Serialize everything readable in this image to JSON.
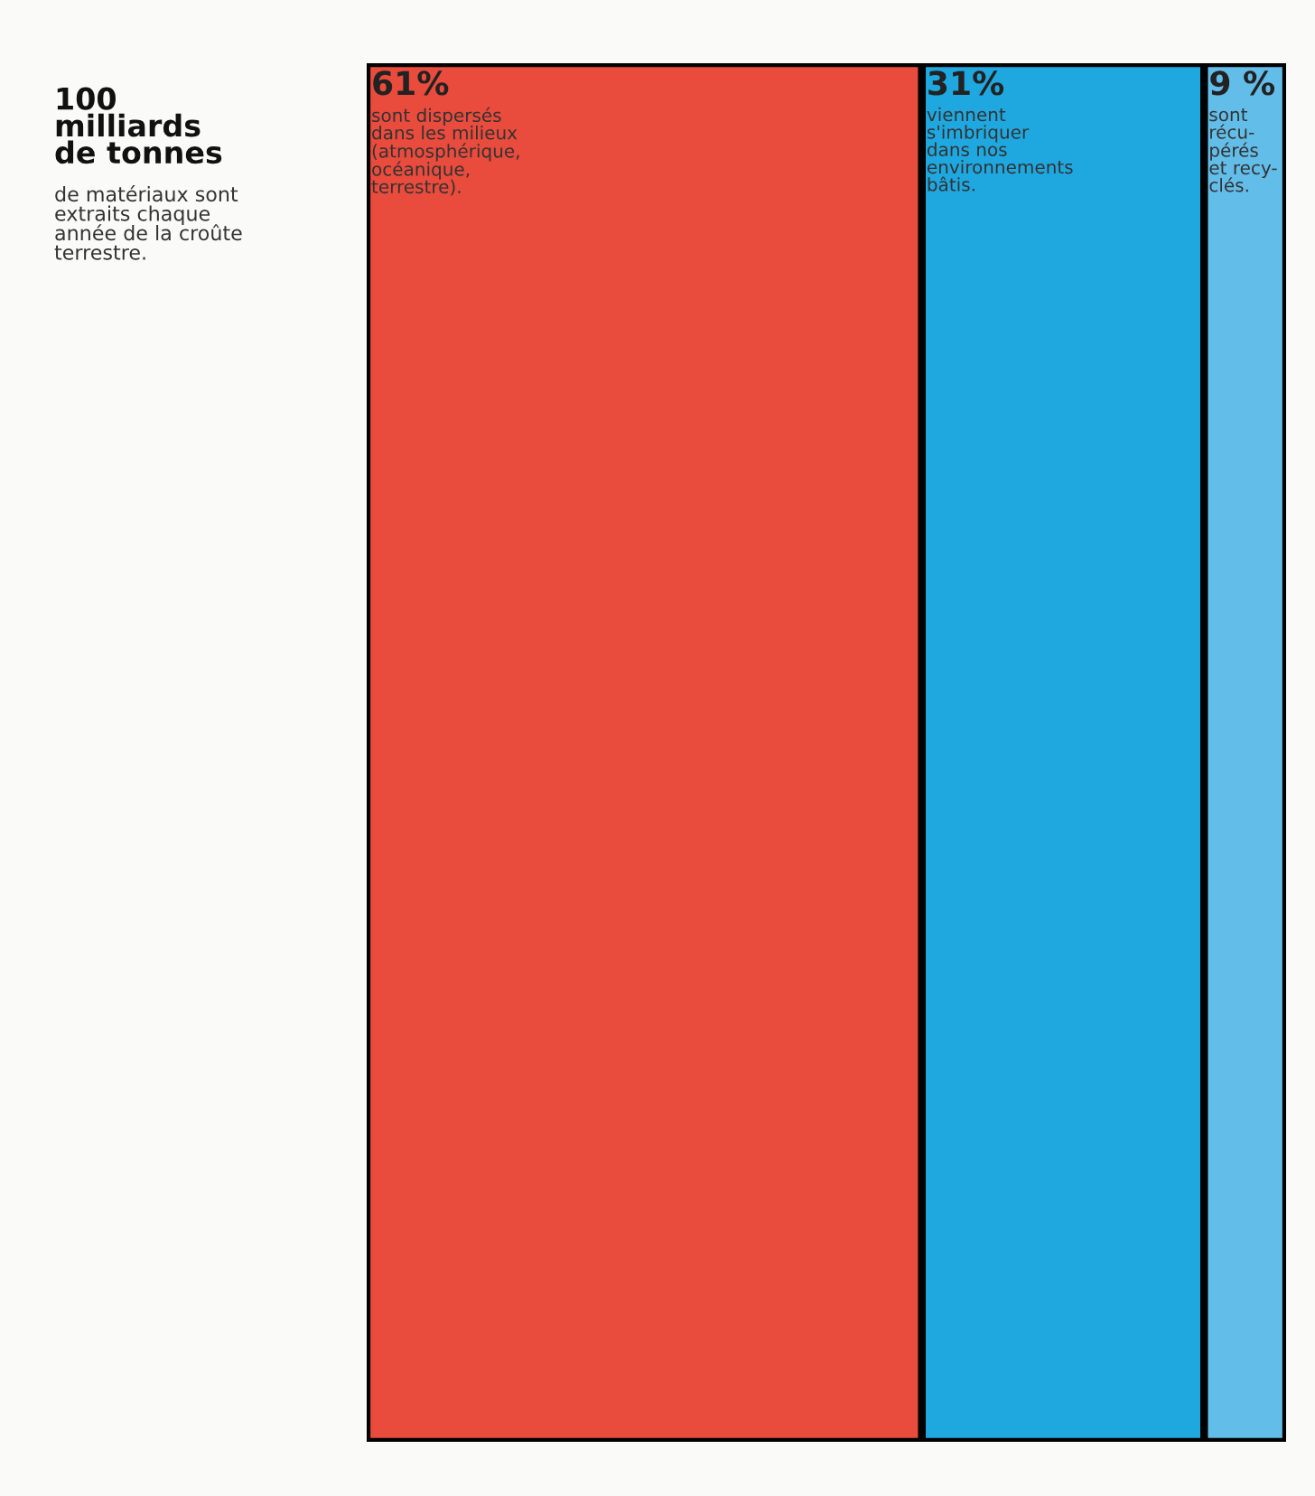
{
  "chart_data": {
    "type": "bar",
    "orientation": "horizontal",
    "stacked": true,
    "title": "100\nmilliards\nde tonnes",
    "subtitle": "de matériaux sont\nextraits chaque\nannée de la croûte\nterrestre.",
    "categories": [
      null
    ],
    "xlim": [
      0,
      101
    ],
    "series": [
      {
        "name": "sont dispersés\ndans les milieux\n(atmosphérique,\nocéanique,\nterrestre).",
        "color": "#e94b3c",
        "values": [
          61
        ],
        "value_labels": [
          "61%"
        ]
      },
      {
        "name": "viennent\ns'imbriquer\ndans nos\nenvironnements\nbâtis.",
        "color": "#1fa8e0",
        "values": [
          31
        ],
        "value_labels": [
          "31%"
        ]
      },
      {
        "name": "sont\nrécu-\npérés\net recy-\nclés.",
        "color": "#63bde9",
        "values": [
          9
        ],
        "value_labels": [
          "9 %"
        ]
      }
    ]
  }
}
